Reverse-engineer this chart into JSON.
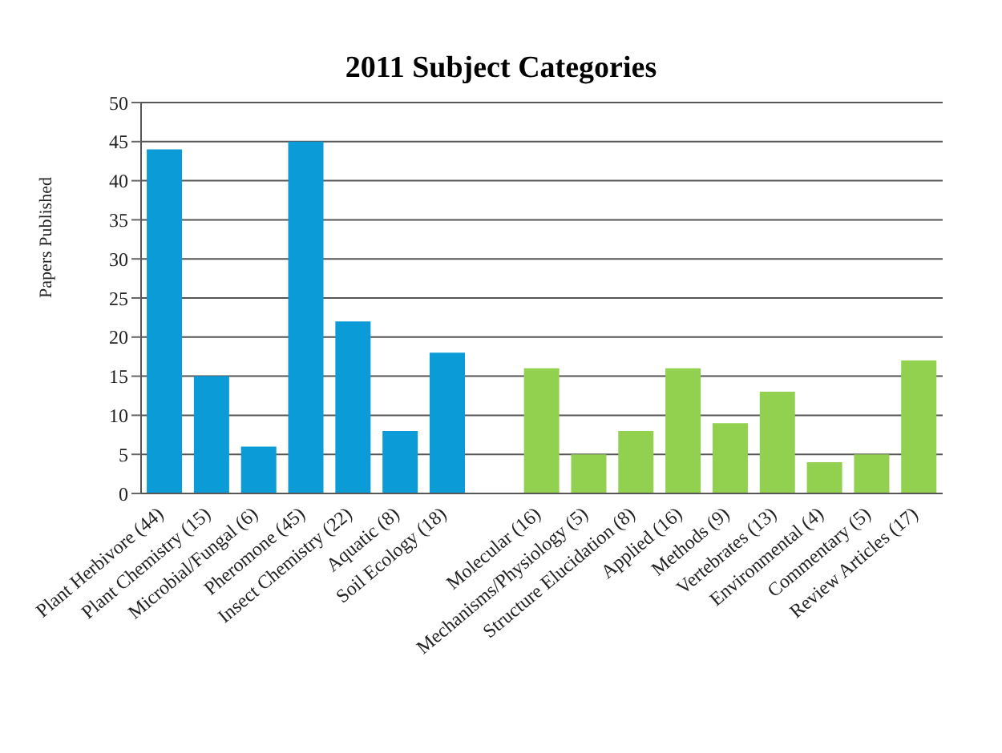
{
  "chart_data": {
    "type": "bar",
    "title": "2011 Subject Categories",
    "ylabel": "Papers Published",
    "categories": [
      "Plant Herbivore (44)",
      "Plant Chemistry (15)",
      "Microbial/Fungal (6)",
      "Pheromone (45)",
      "Insect Chemistry (22)",
      "Aquatic (8)",
      "Soil Ecology (18)",
      null,
      "Molecular (16)",
      "Mechanisms/Physiology (5)",
      "Structure Elucidation (8)",
      "Applied (16)",
      "Methods (9)",
      "Vertebrates (13)",
      "Environmental (4)",
      "Commentary (5)",
      "Review Articles (17)"
    ],
    "values": [
      44,
      15,
      6,
      45,
      22,
      8,
      18,
      null,
      16,
      5,
      8,
      16,
      9,
      13,
      4,
      5,
      17
    ],
    "colors": [
      "#0b9bd7",
      "#0b9bd7",
      "#0b9bd7",
      "#0b9bd7",
      "#0b9bd7",
      "#0b9bd7",
      "#0b9bd7",
      null,
      "#92d050",
      "#92d050",
      "#92d050",
      "#92d050",
      "#92d050",
      "#92d050",
      "#92d050",
      "#92d050",
      "#92d050"
    ],
    "ylim": [
      0,
      50
    ],
    "yticks": [
      0,
      5,
      10,
      15,
      20,
      25,
      30,
      35,
      40,
      45,
      50
    ],
    "grid": "y"
  }
}
